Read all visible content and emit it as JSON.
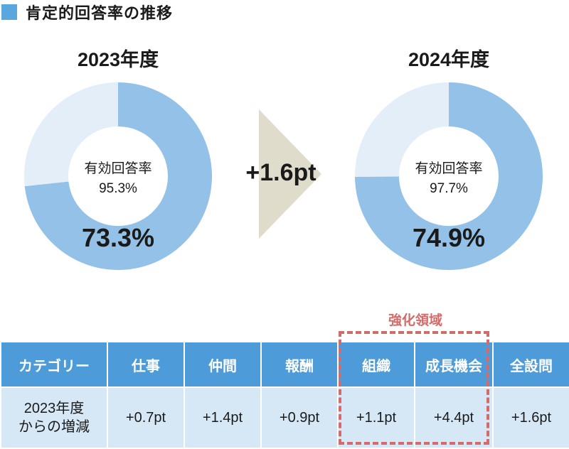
{
  "header": {
    "title": "肯定的回答率の推移"
  },
  "chart_data": [
    {
      "type": "pie",
      "title": "2023年度",
      "center_label": "有効回答率",
      "center_value": "95.3%",
      "value_label": "73.3%",
      "slices": [
        {
          "value": 73.3,
          "color": "#93c1e8"
        },
        {
          "value": 26.7,
          "color": "#e3eef9"
        }
      ]
    },
    {
      "type": "pie",
      "title": "2024年度",
      "center_label": "有効回答率",
      "center_value": "97.7%",
      "value_label": "74.9%",
      "slices": [
        {
          "value": 74.9,
          "color": "#93c1e8"
        },
        {
          "value": 25.1,
          "color": "#e3eef9"
        }
      ]
    }
  ],
  "change": {
    "label": "+1.6pt"
  },
  "focus": {
    "label": "強化領域"
  },
  "table": {
    "headers": [
      "カテゴリー",
      "仕事",
      "仲間",
      "報酬",
      "組織",
      "成長機会",
      "全設問"
    ],
    "row_label_line1": "2023年度",
    "row_label_line2": "からの増減",
    "values": [
      "+0.7pt",
      "+1.4pt",
      "+0.9pt",
      "+1.1pt",
      "+4.4pt",
      "+1.6pt"
    ]
  },
  "colors": {
    "accent": "#5aa7e0",
    "donut_main": "#93c1e8",
    "donut_rest": "#e3eef9",
    "arrow": "#e0dccc",
    "table_header": "#4d9bd8",
    "table_cell": "#d6e8f6",
    "focus": "#d36b6b"
  }
}
